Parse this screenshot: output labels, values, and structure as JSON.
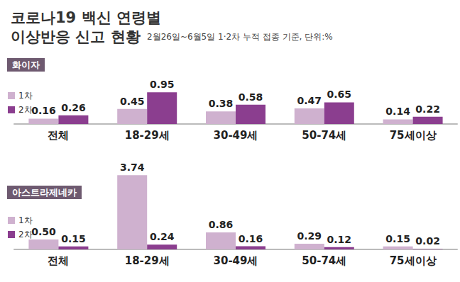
{
  "title": "코로나19 백신 연령별\n이상반응 신고 현황",
  "subtitle": "2월26일~6월5일 1·2차 누적 접종 기준, 단위:%",
  "chart_data": [
    {
      "type": "bar",
      "title": "화이자",
      "categories": [
        "전체",
        "18-29세",
        "30-49세",
        "50-74세",
        "75세이상"
      ],
      "series": [
        {
          "name": "1차",
          "color": "#cfb1cf",
          "values": [
            0.16,
            0.45,
            0.38,
            0.47,
            0.14
          ],
          "value_labels": [
            "0.16",
            "0.45",
            "0.38",
            "0.47",
            "0.14"
          ]
        },
        {
          "name": "2차",
          "color": "#8b3e8f",
          "values": [
            0.26,
            0.95,
            0.58,
            0.65,
            0.22
          ],
          "value_labels": [
            "0.26",
            "0.95",
            "0.58",
            "0.65",
            "0.22"
          ]
        }
      ],
      "ylim": [
        0,
        1
      ],
      "yticks": [
        0,
        1
      ],
      "grid": false,
      "legend": "left",
      "data_labels": true,
      "tick_labels": "x"
    },
    {
      "type": "bar",
      "title": "아스트라제네카",
      "categories": [
        "전체",
        "18-29세",
        "30-49세",
        "50-74세",
        "75세이상"
      ],
      "series": [
        {
          "name": "1차",
          "color": "#cfb1cf",
          "values": [
            0.5,
            3.74,
            0.86,
            0.29,
            0.15
          ],
          "value_labels": [
            "0.50",
            "3.74",
            "0.86",
            "0.29",
            "0.15"
          ]
        },
        {
          "name": "2차",
          "color": "#8b3e8f",
          "values": [
            0.15,
            0.24,
            0.16,
            0.12,
            0.02
          ],
          "value_labels": [
            "0.15",
            "0.24",
            "0.16",
            "0.12",
            "0.02"
          ]
        }
      ],
      "ylim": [
        0,
        4
      ],
      "yticks": [
        0,
        4
      ],
      "grid": false,
      "legend": "left",
      "data_labels": true,
      "tick_labels": "x"
    }
  ]
}
